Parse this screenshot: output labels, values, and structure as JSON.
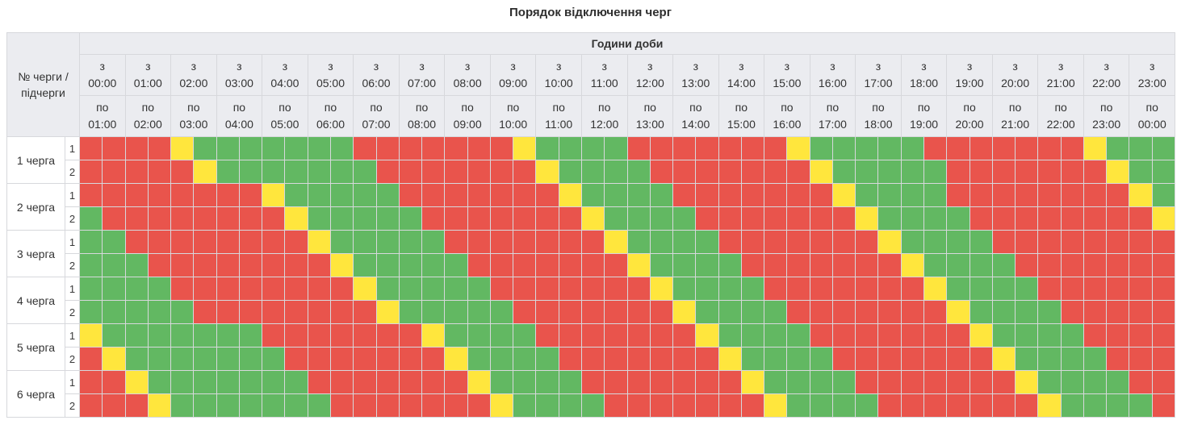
{
  "title": "Порядок відключення черг",
  "header": {
    "corner_label": "№ черги / підчерги",
    "hours_group_label": "Години доби",
    "from_word": "з",
    "to_word": "по"
  },
  "colors": {
    "R": "#e9544c",
    "G": "#62b862",
    "Y": "#ffe63d",
    "header_bg": "#ebecf0",
    "grid_line": "#d7d8dc",
    "text": "#333333"
  },
  "chart_data": {
    "type": "heatmap",
    "slot_minutes": 30,
    "cell_states": {
      "R": "red",
      "G": "green",
      "Y": "yellow"
    },
    "time_columns": [
      {
        "from": "00:00",
        "to": "01:00"
      },
      {
        "from": "01:00",
        "to": "02:00"
      },
      {
        "from": "02:00",
        "to": "03:00"
      },
      {
        "from": "03:00",
        "to": "04:00"
      },
      {
        "from": "04:00",
        "to": "05:00"
      },
      {
        "from": "05:00",
        "to": "06:00"
      },
      {
        "from": "06:00",
        "to": "07:00"
      },
      {
        "from": "07:00",
        "to": "08:00"
      },
      {
        "from": "08:00",
        "to": "09:00"
      },
      {
        "from": "09:00",
        "to": "10:00"
      },
      {
        "from": "10:00",
        "to": "11:00"
      },
      {
        "from": "11:00",
        "to": "12:00"
      },
      {
        "from": "12:00",
        "to": "13:00"
      },
      {
        "from": "13:00",
        "to": "14:00"
      },
      {
        "from": "14:00",
        "to": "15:00"
      },
      {
        "from": "15:00",
        "to": "16:00"
      },
      {
        "from": "16:00",
        "to": "17:00"
      },
      {
        "from": "17:00",
        "to": "18:00"
      },
      {
        "from": "18:00",
        "to": "19:00"
      },
      {
        "from": "19:00",
        "to": "20:00"
      },
      {
        "from": "20:00",
        "to": "21:00"
      },
      {
        "from": "21:00",
        "to": "22:00"
      },
      {
        "from": "22:00",
        "to": "23:00"
      },
      {
        "from": "23:00",
        "to": "00:00"
      }
    ],
    "groups": [
      {
        "label": "1 черга",
        "subrows": [
          {
            "num": "1",
            "cells": "RRRRYGGGGGGGRRRRRRRYGGGGRRRRRRRYGGGGGRRRRRRRYGGG"
          },
          {
            "num": "2",
            "cells": "RRRRRYGGGGGGGRRRRRRRYGGGGRRRRRRRYGGGGGRRRRRRRYGG"
          }
        ]
      },
      {
        "label": "2 черга",
        "subrows": [
          {
            "num": "1",
            "cells": "RRRRRRRRYGGGGGRRRRRRRYGGGGRRRRRRRYGGGGRRRRRRRRYG"
          },
          {
            "num": "2",
            "cells": "GRRRRRRRRYGGGGGRRRRRRRYGGGGRRRRRRRYGGGGRRRRRRRRY"
          }
        ]
      },
      {
        "label": "3 черга",
        "subrows": [
          {
            "num": "1",
            "cells": "GGRRRRRRRRYGGGGGRRRRRRRYGGGGRRRRRRRYGGGGRRRRRRRR"
          },
          {
            "num": "2",
            "cells": "GGGRRRRRRRRYGGGGGRRRRRRRYGGGGRRRRRRRYGGGGRRRRRRR"
          }
        ]
      },
      {
        "label": "4 черга",
        "subrows": [
          {
            "num": "1",
            "cells": "GGGGRRRRRRRRYGGGGGRRRRRRRYGGGGRRRRRRRYGGGGRRRRRR"
          },
          {
            "num": "2",
            "cells": "GGGGGRRRRRRRRYGGGGGRRRRRRRYGGGGRRRRRRRYGGGGRRRRR"
          }
        ]
      },
      {
        "label": "5 черга",
        "subrows": [
          {
            "num": "1",
            "cells": "YGGGGGGGRRRRRRRYGGGGRRRRRRRYGGGGRRRRRRRYGGGGRRRR"
          },
          {
            "num": "2",
            "cells": "RYGGGGGGGRRRRRRRYGGGGRRRRRRRYGGGGRRRRRRRYGGGGRRR"
          }
        ]
      },
      {
        "label": "6 черга",
        "subrows": [
          {
            "num": "1",
            "cells": "RRYGGGGGGGRRRRRRRYGGGGRRRRRRRYGGGGRRRRRRRYGGGGRR"
          },
          {
            "num": "2",
            "cells": "RRRYGGGGGGGRRRRRRRYGGGGRRRRRRRYGGGGRRRRRRRYGGGGR"
          }
        ]
      }
    ]
  }
}
